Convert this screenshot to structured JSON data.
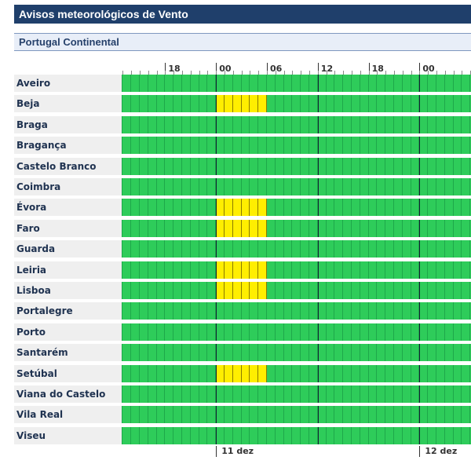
{
  "header": {
    "title": "Avisos meteorológicos de Vento"
  },
  "region": {
    "label": "Portugal Continental"
  },
  "timeline": {
    "hour_labels": [
      "18",
      "00",
      "06",
      "12",
      "18",
      "00"
    ],
    "day_labels": [
      "11 dez",
      "12 dez"
    ]
  },
  "colors": {
    "green": "#2ecc5a",
    "yellow": "#ffee00",
    "title_bg": "#1f3f6b"
  },
  "districts": [
    {
      "name": "Aveiro",
      "warning": "green"
    },
    {
      "name": "Beja",
      "warning": "yellow 00–06"
    },
    {
      "name": "Braga",
      "warning": "green"
    },
    {
      "name": "Bragança",
      "warning": "green"
    },
    {
      "name": "Castelo Branco",
      "warning": "green"
    },
    {
      "name": "Coimbra",
      "warning": "green"
    },
    {
      "name": "Évora",
      "warning": "yellow 00–06"
    },
    {
      "name": "Faro",
      "warning": "yellow 00–06"
    },
    {
      "name": "Guarda",
      "warning": "green"
    },
    {
      "name": "Leiria",
      "warning": "yellow 00–06"
    },
    {
      "name": "Lisboa",
      "warning": "yellow 00–06"
    },
    {
      "name": "Portalegre",
      "warning": "green"
    },
    {
      "name": "Porto",
      "warning": "green"
    },
    {
      "name": "Santarém",
      "warning": "green"
    },
    {
      "name": "Setúbal",
      "warning": "yellow 00–06"
    },
    {
      "name": "Viana do Castelo",
      "warning": "green"
    },
    {
      "name": "Vila Real",
      "warning": "green"
    },
    {
      "name": "Viseu",
      "warning": "green"
    }
  ]
}
